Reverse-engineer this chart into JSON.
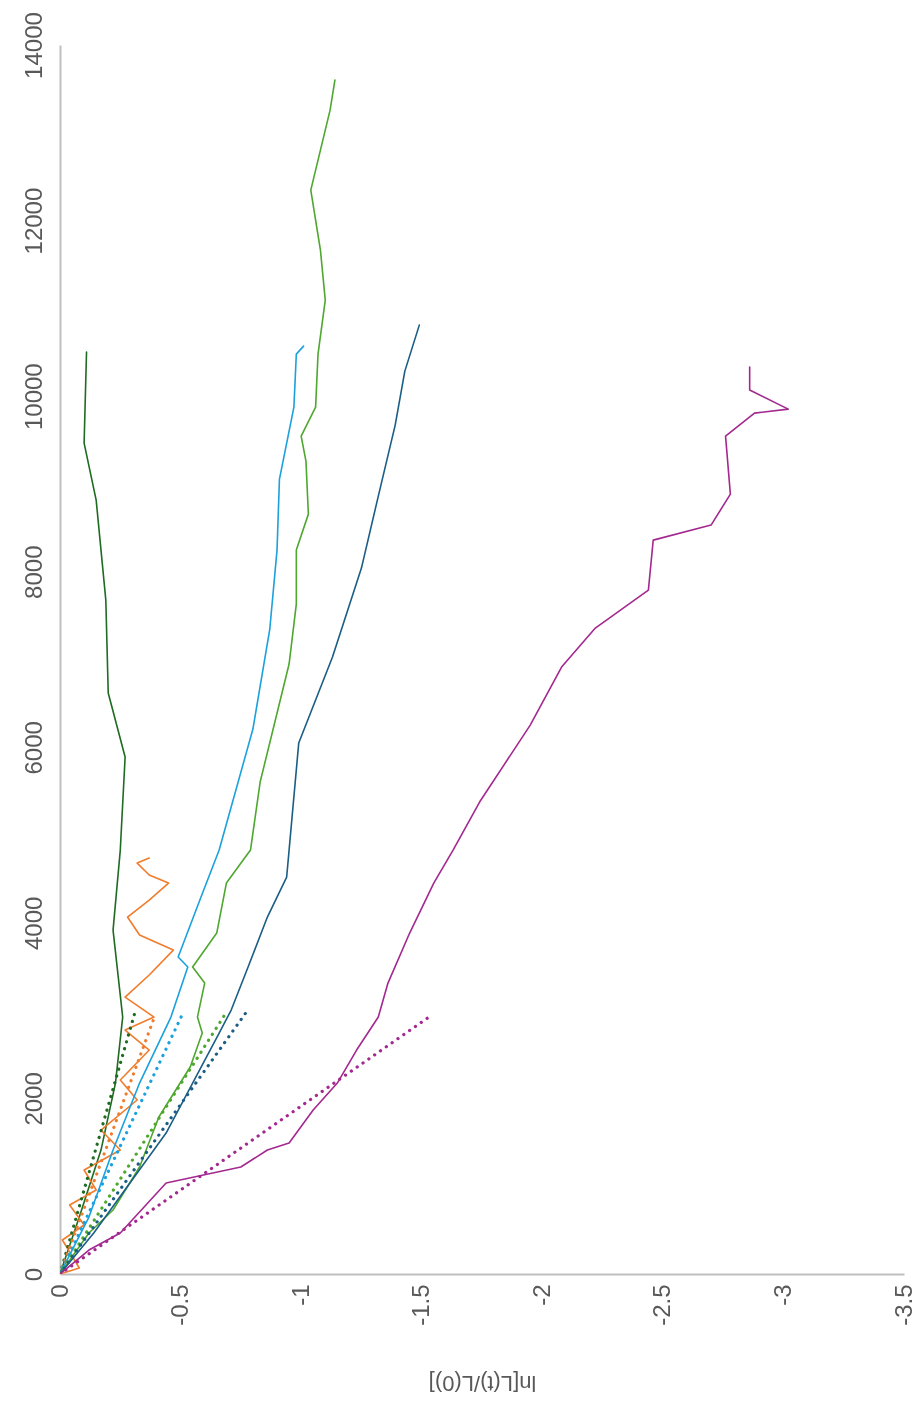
{
  "chart_data": {
    "type": "line",
    "orientation": "horizontal",
    "xlabel": "ln[L(t)/L(0)]",
    "xlim": [
      0,
      -3.5
    ],
    "xticks": [
      0,
      -0.5,
      -1,
      -1.5,
      -2,
      -2.5,
      -3,
      -3.5
    ],
    "ylim": [
      0,
      14000
    ],
    "yticks": [
      0,
      2000,
      4000,
      6000,
      8000,
      10000,
      12000,
      14000
    ],
    "grid": false,
    "series": [
      {
        "color": "#1e6b22",
        "x": [
          0,
          649,
          1412,
          2175,
          2927,
          3918,
          4829,
          5889,
          6618,
          7677,
          8816,
          9465,
          10502
        ],
        "values": [
          0,
          -0.08,
          -0.17,
          -0.23,
          -0.26,
          -0.22,
          -0.25,
          -0.27,
          -0.2,
          -0.19,
          -0.15,
          -0.1,
          -0.11
        ]
      },
      {
        "color": "#f07c2c",
        "x": [
          0,
          68,
          387,
          558,
          786,
          957,
          1185,
          1412,
          1640,
          1982,
          2210,
          2551,
          2779,
          2927,
          3155,
          3406,
          3690,
          3861,
          4066,
          4260,
          4453,
          4545,
          4681,
          4738
        ],
        "values": [
          0,
          -0.08,
          -0.01,
          -0.1,
          -0.04,
          -0.15,
          -0.1,
          -0.25,
          -0.17,
          -0.32,
          -0.25,
          -0.37,
          -0.27,
          -0.39,
          -0.27,
          -0.37,
          -0.47,
          -0.33,
          -0.28,
          -0.37,
          -0.45,
          -0.37,
          -0.32,
          -0.37
        ]
      },
      {
        "color": "#1ba1dc",
        "x": [
          0,
          649,
          1412,
          2175,
          2927,
          3497,
          3611,
          4260,
          4829,
          6208,
          7347,
          8246,
          9055,
          9875,
          10479,
          10570
        ],
        "values": [
          0,
          -0.12,
          -0.22,
          -0.33,
          -0.46,
          -0.53,
          -0.49,
          -0.58,
          -0.66,
          -0.8,
          -0.87,
          -0.9,
          -0.91,
          -0.97,
          -0.98,
          -1.01
        ]
      },
      {
        "color": "#4ea72e",
        "x": [
          0,
          467,
          729,
          1219,
          1788,
          2358,
          2745,
          2927,
          3314,
          3497,
          3884,
          4453,
          4829,
          5604,
          6948,
          7631,
          8246,
          8656,
          9260,
          9545,
          9875,
          10479,
          11094,
          11663,
          12347,
          12802,
          13258,
          13600
        ],
        "values": [
          0,
          -0.12,
          -0.22,
          -0.33,
          -0.41,
          -0.54,
          -0.59,
          -0.57,
          -0.6,
          -0.55,
          -0.65,
          -0.69,
          -0.79,
          -0.83,
          -0.95,
          -0.98,
          -0.98,
          -1.03,
          -1.02,
          -1.0,
          -1.06,
          -1.07,
          -1.1,
          -1.08,
          -1.04,
          -1.08,
          -1.12,
          -1.14
        ]
      },
      {
        "color": "#1b5e85",
        "x": [
          0,
          467,
          1036,
          1606,
          2175,
          2745,
          3007,
          3497,
          4066,
          4522,
          4829,
          6048,
          7028,
          8041,
          8861,
          9670,
          10285,
          10809
        ],
        "values": [
          0,
          -0.14,
          -0.29,
          -0.44,
          -0.55,
          -0.66,
          -0.71,
          -0.78,
          -0.86,
          -0.94,
          -0.95,
          -0.99,
          -1.13,
          -1.25,
          -1.32,
          -1.39,
          -1.43,
          -1.49
        ]
      },
      {
        "color": "#a3288f",
        "x": [
          0,
          273,
          467,
          1036,
          1219,
          1412,
          1492,
          1868,
          2175,
          2551,
          2927,
          3314,
          3884,
          4453,
          4829,
          5376,
          6253,
          6914,
          7358,
          7791,
          8360,
          8531,
          8884,
          9545,
          9807,
          9852,
          10069,
          10331
        ],
        "values": [
          0,
          -0.12,
          -0.25,
          -0.44,
          -0.75,
          -0.86,
          -0.95,
          -1.05,
          -1.15,
          -1.23,
          -1.32,
          -1.36,
          -1.45,
          -1.55,
          -1.63,
          -1.74,
          -1.95,
          -2.08,
          -2.22,
          -2.44,
          -2.46,
          -2.7,
          -2.78,
          -2.76,
          -2.88,
          -3.02,
          -2.86,
          -2.86
        ]
      },
      {
        "color": "#1e6b22",
        "line_style": "dotted",
        "x": [
          0,
          2973
        ],
        "values": [
          0,
          -0.31
        ]
      },
      {
        "color": "#f07c2c",
        "line_style": "dotted",
        "x": [
          0,
          2916
        ],
        "values": [
          0,
          -0.39
        ]
      },
      {
        "color": "#1ba1dc",
        "line_style": "dotted",
        "x": [
          0,
          2973
        ],
        "values": [
          0,
          -0.51
        ]
      },
      {
        "color": "#4ea72e",
        "line_style": "dotted",
        "x": [
          0,
          2939
        ],
        "values": [
          0,
          -0.68
        ]
      },
      {
        "color": "#1b5e85",
        "line_style": "dotted",
        "x": [
          0,
          2973
        ],
        "values": [
          0,
          -0.77
        ]
      },
      {
        "color": "#a3288f",
        "line_style": "dotted",
        "x": [
          0,
          2927
        ],
        "values": [
          0,
          -1.53
        ]
      }
    ]
  }
}
